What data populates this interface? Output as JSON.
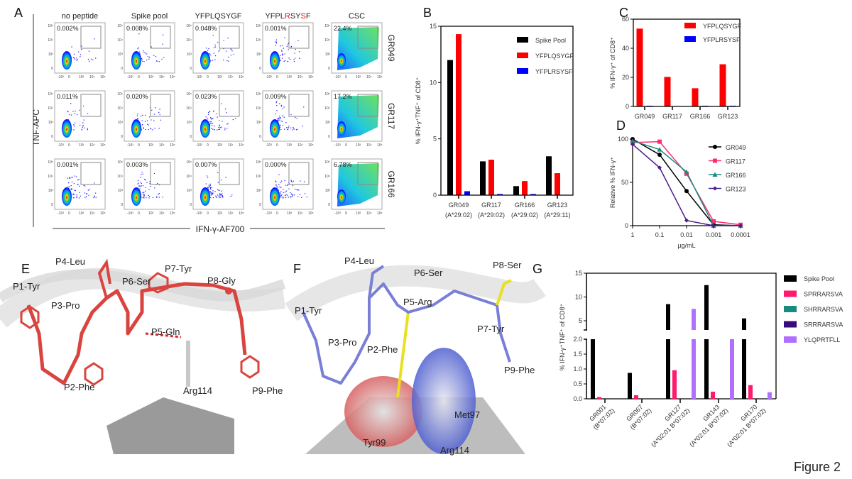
{
  "figure_label": "Figure 2",
  "panel_a": {
    "label": "A",
    "columns": [
      {
        "segments": [
          {
            "text": "no peptide",
            "red": false
          }
        ]
      },
      {
        "segments": [
          {
            "text": "Spike pool",
            "red": false
          }
        ]
      },
      {
        "segments": [
          {
            "text": "YFPLQSYGF",
            "red": false
          }
        ]
      },
      {
        "segments": [
          {
            "text": "YFPL",
            "red": false
          },
          {
            "text": "R",
            "red": true
          },
          {
            "text": "SY",
            "red": false
          },
          {
            "text": "S",
            "red": true
          },
          {
            "text": "F",
            "red": false
          }
        ]
      },
      {
        "segments": [
          {
            "text": "CSC",
            "red": false
          }
        ]
      }
    ],
    "rows": [
      "GR049",
      "GR117",
      "GR166"
    ],
    "percentages": [
      [
        "0.002%",
        "0.008%",
        "0.048%",
        "0.001%",
        "22.4%"
      ],
      [
        "0.011%",
        "0.020%",
        "0.023%",
        "0.009%",
        "17.2%"
      ],
      [
        "0.001%",
        "0.003%",
        "0.007%",
        "0.000%",
        "6.78%"
      ]
    ],
    "x_ticks": [
      "-10³",
      "0",
      "10³",
      "10⁴",
      "10⁵"
    ],
    "y_ticks": [
      "10⁵",
      "10⁴",
      "10³",
      "0"
    ],
    "y_axis_label": "TNF-APC",
    "x_axis_label": "IFN-γ-AF700"
  },
  "chart_data": [
    {
      "panel": "B",
      "type": "bar",
      "categories": [
        "GR049",
        "GR117",
        "GR166",
        "GR123"
      ],
      "category_sublabels": [
        "(A*29:02)",
        "(A*29:02)",
        "(A*29:02)",
        "(A*29:11)"
      ],
      "series": [
        {
          "name": "Spike Pool",
          "color": "#000000",
          "values": [
            12.0,
            3.0,
            0.8,
            3.45
          ]
        },
        {
          "name": "YFPLQSYGF",
          "color": "#ff0000",
          "values": [
            14.3,
            3.15,
            1.25,
            1.95
          ]
        },
        {
          "name": "YFPLRSYSF",
          "color": "#0000ff",
          "values": [
            0.35,
            0.1,
            0.1,
            0.0
          ]
        }
      ],
      "ylabel": "% IFN-γ⁺TNF⁺ of CD8⁺",
      "ylim": [
        0,
        15
      ],
      "yticks": [
        "0",
        "5",
        "10",
        "15"
      ],
      "legend": "top-right"
    },
    {
      "panel": "C",
      "type": "bar",
      "categories": [
        "GR049",
        "GR117",
        "GR166",
        "GR123"
      ],
      "series": [
        {
          "name": "YFPLQSYGF",
          "color": "#ff0000",
          "values": [
            53.5,
            20.3,
            12.5,
            29.0
          ]
        },
        {
          "name": "YFPLRSYSF",
          "color": "#0000ff",
          "values": [
            0.5,
            0.0,
            0.5,
            0.5
          ]
        }
      ],
      "ylabel": "% IFN-γ⁺ of CD8⁺",
      "ylim": [
        0,
        60
      ],
      "yticks": [
        "0",
        "20",
        "40",
        "60"
      ],
      "legend": "top-right"
    },
    {
      "panel": "D",
      "type": "line",
      "x": [
        "1",
        "0.1",
        "0.01",
        "0.001",
        "0.0001"
      ],
      "series": [
        {
          "name": "GR049",
          "color": "#000000",
          "marker": "circle",
          "values": [
            100,
            82,
            40,
            1,
            0
          ]
        },
        {
          "name": "GR117",
          "color": "#ff2d6e",
          "marker": "square",
          "values": [
            96,
            97,
            60,
            5,
            1
          ]
        },
        {
          "name": "GR166",
          "color": "#1a8a80",
          "marker": "triangle",
          "values": [
            98,
            88,
            62,
            0,
            0
          ]
        },
        {
          "name": "GR123",
          "color": "#4b1c8c",
          "marker": "diamond",
          "values": [
            94,
            67,
            6,
            0,
            0
          ]
        }
      ],
      "xlabel": "µg/mL",
      "ylabel": "Relative % IFN-γ⁺",
      "ylim": [
        0,
        100
      ],
      "yticks": [
        "0",
        "50",
        "100"
      ],
      "legend": "right"
    },
    {
      "panel": "G",
      "type": "bar",
      "categories": [
        "GR001",
        "GR067",
        "GR127",
        "GR143",
        "GR170"
      ],
      "category_sublabels": [
        "(B*07:02)",
        "(B*07:02)",
        "(A*02:01 B*07:02)",
        "(A*02:01 B*07:02)",
        "(A*02:01 B*07:02)"
      ],
      "series": [
        {
          "name": "Spike Pool",
          "color": "#000000",
          "values": [
            2.0,
            0.87,
            8.5,
            12.5,
            5.5
          ]
        },
        {
          "name": "SPRRARSVA",
          "color": "#ff1a6e",
          "values": [
            0.06,
            0.12,
            0.96,
            0.24,
            0.46
          ]
        },
        {
          "name": "SHRRARSVA",
          "color": "#1a8a80",
          "values": [
            0,
            0,
            0,
            0,
            0
          ]
        },
        {
          "name": "SRRRARSVA",
          "color": "#3a0a7a",
          "values": [
            0,
            0,
            0,
            0,
            0
          ]
        },
        {
          "name": "YLQPRTFLL",
          "color": "#b070ff",
          "values": [
            0,
            0,
            7.5,
            2.0,
            0.22
          ]
        }
      ],
      "ylabel": "% IFN-γ⁺TNF⁺ of CD8⁺",
      "y_axis_break": true,
      "yticks_lower": [
        "0.0",
        "0.5",
        "1.0",
        "1.5",
        "2.0"
      ],
      "yticks_upper": [
        "5",
        "10",
        "15"
      ],
      "legend": "right"
    }
  ],
  "panel_e": {
    "label": "E",
    "residues": [
      "P1-Tyr",
      "P4-Leu",
      "P3-Pro",
      "P6-Ser",
      "P7-Tyr",
      "P8-Gly",
      "P5-Gln",
      "P2-Phe",
      "Arg114",
      "P9-Phe"
    ]
  },
  "panel_f": {
    "label": "F",
    "residues": [
      "P4-Leu",
      "P1-Tyr",
      "P6-Ser",
      "P8-Ser",
      "P5-Arg",
      "P3-Pro",
      "P2-Phe",
      "P7-Tyr",
      "P9-Phe",
      "Met97",
      "Tyr99",
      "Arg114"
    ]
  },
  "panel_g_label": "G",
  "panel_b_label": "B",
  "panel_c_label": "C",
  "panel_d_label": "D"
}
